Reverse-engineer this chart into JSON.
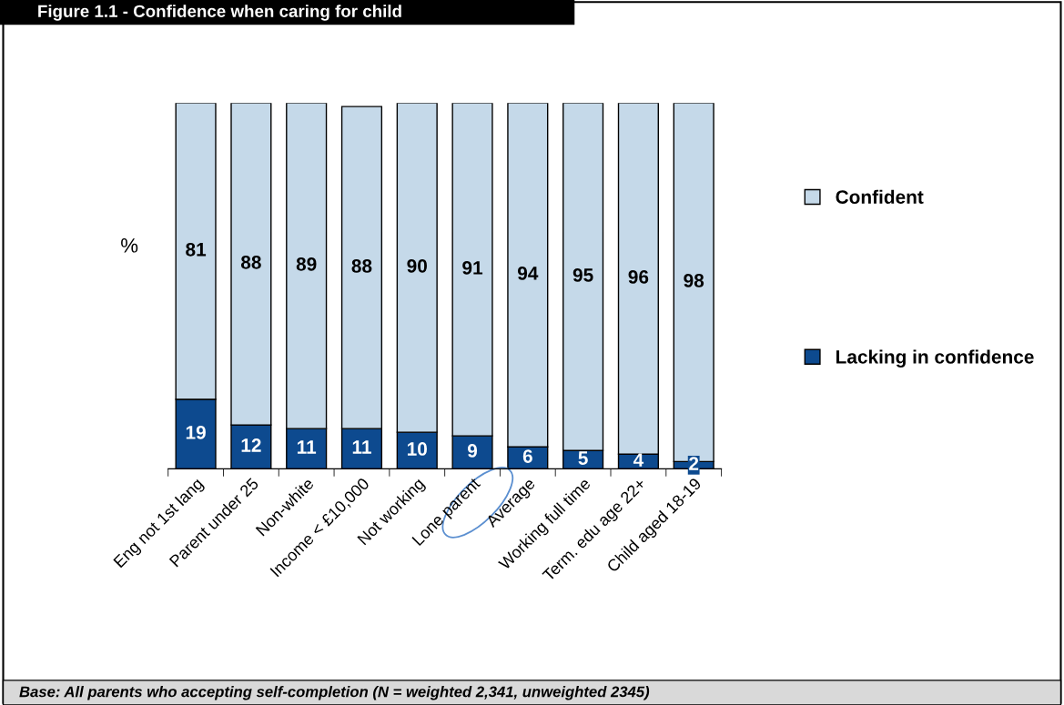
{
  "chart_data": {
    "type": "bar",
    "title": "Figure 1.1 - Confidence when caring for child",
    "ylabel": "%",
    "categories": [
      "Eng not 1st lang",
      "Parent under 25",
      "Non-white",
      "Income < £10,000",
      "Not working",
      "Lone parent",
      "Average",
      "Working full time",
      "Term. edu age 22+",
      "Child aged 18-19"
    ],
    "stacked": true,
    "ylim": [
      0,
      100
    ],
    "data_labels": true,
    "legend": "right",
    "grid": false,
    "series": [
      {
        "name": "Lacking in confidence",
        "color": "#0d4a8f",
        "values": [
          19,
          12,
          11,
          11,
          10,
          9,
          6,
          5,
          4,
          2
        ]
      },
      {
        "name": "Confident",
        "color": "#c5d9e9",
        "values": [
          81,
          88,
          89,
          88,
          90,
          91,
          94,
          95,
          96,
          98
        ]
      }
    ],
    "annotations": [
      "Base: All parents who accepting self-completion (N = weighted 2,341, unweighted 2345)"
    ]
  }
}
